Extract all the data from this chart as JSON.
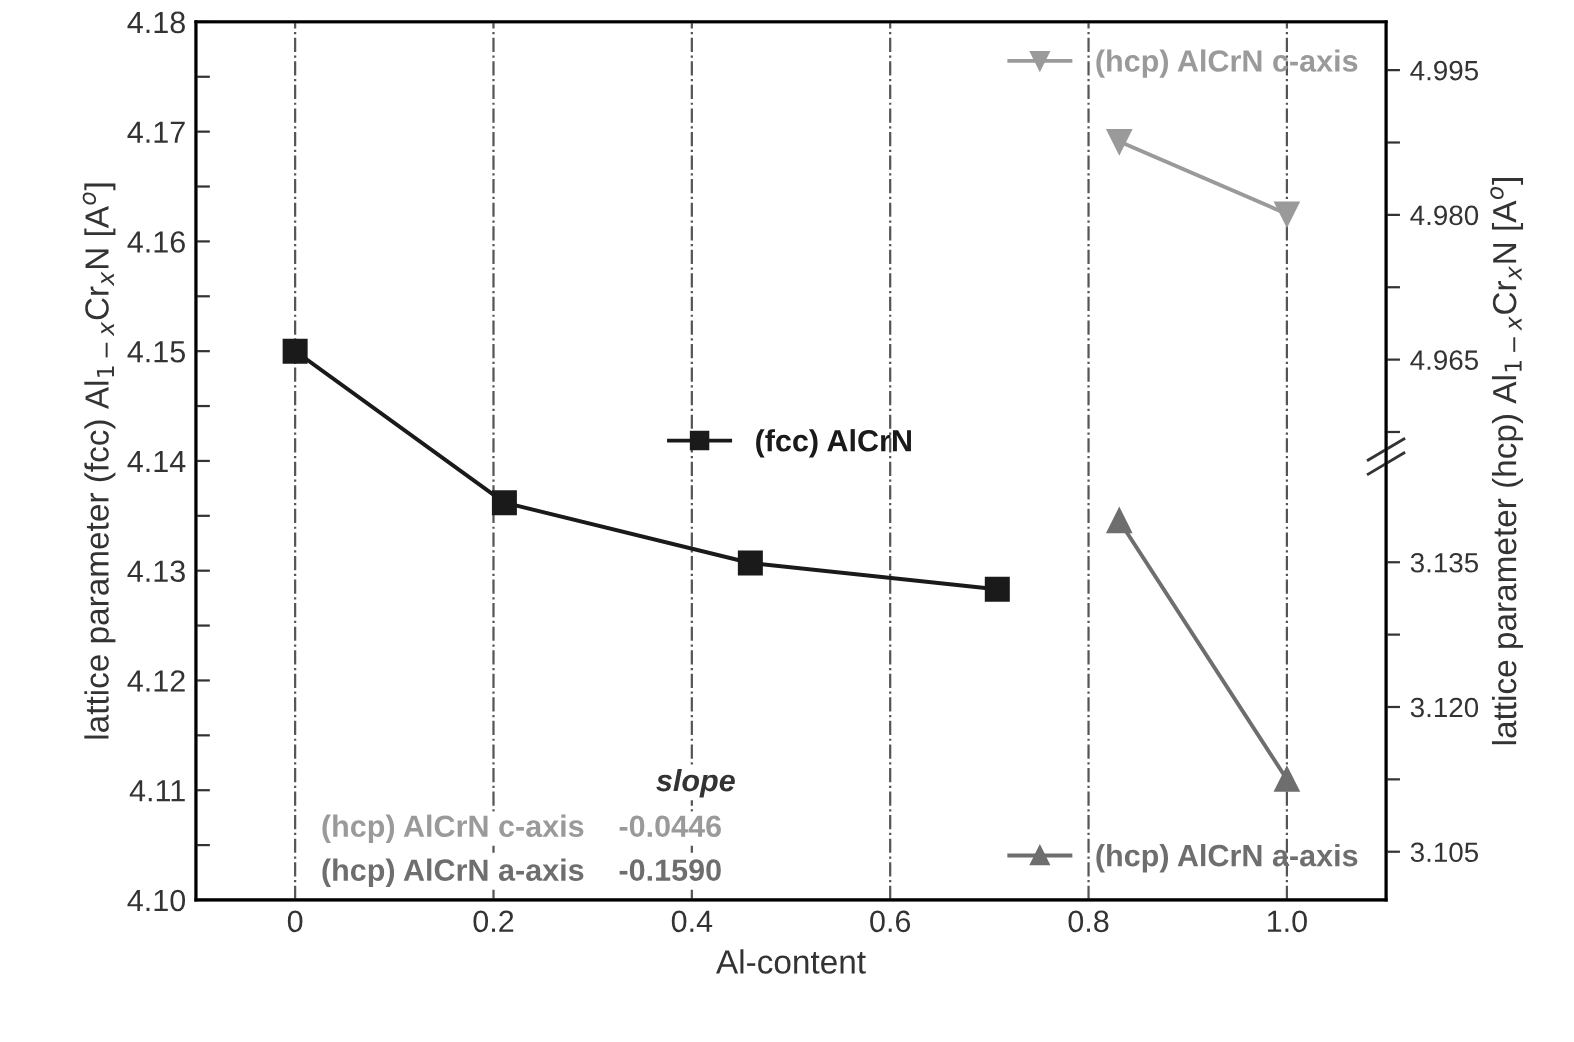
{
  "chart_data": {
    "type": "line",
    "xlabel": "Al-content",
    "ylabel": "lattice parameter (fcc) Al$_{1−x}$Cr$_{x}$N [A$^{o}$]",
    "y2label": "lattice parameter (hcp) Al$_{1−x}$Cr$_{x}$N [A$^{o}$]",
    "xlim": [
      -0.1,
      1.1
    ],
    "xticks": [
      0,
      0.2,
      0.4,
      0.6,
      0.8,
      {
        "value": 1.0,
        "label": "1.0"
      }
    ],
    "ylim": [
      4.1,
      4.18
    ],
    "yticks": [
      {
        "value": 4.1,
        "label": "4.10"
      },
      {
        "value": 4.105,
        "label": null
      },
      4.11,
      {
        "value": 4.115,
        "label": null
      },
      4.12,
      {
        "value": 4.125,
        "label": null
      },
      4.13,
      {
        "value": 4.135,
        "label": null
      },
      4.14,
      {
        "value": 4.145,
        "label": null
      },
      4.15,
      {
        "value": 4.155,
        "label": null
      },
      4.16,
      {
        "value": 4.165,
        "label": null
      },
      4.17,
      {
        "value": 4.175,
        "label": null
      },
      {
        "value": 4.18,
        "label": "4.18"
      }
    ],
    "y2lim": [
      4.909,
      5.0
    ],
    "y2ticks": [
      {
        "value": 4.9575,
        "label": null
      },
      4.965,
      {
        "value": 4.9725,
        "label": null
      },
      {
        "value": 4.98,
        "label": "4.980"
      },
      {
        "value": 4.9875,
        "label": null
      },
      4.995
    ],
    "y3lim": [
      3.1,
      3.191
    ],
    "y3ticks": [
      3.105,
      {
        "value": 3.1125,
        "label": null
      },
      {
        "value": 3.12,
        "label": "3.120"
      },
      {
        "value": 3.1275,
        "label": null
      },
      3.135
    ],
    "grid": "x",
    "legend": "right",
    "line_style": "solid",
    "series": [
      {
        "name": "(fcc) AlCrN",
        "color": "#1a1a1a",
        "marker": "square",
        "x": [
          0,
          0.211,
          0.459,
          0.708
        ],
        "values": [
          4.15,
          4.1362,
          4.1307,
          4.1283
        ]
      },
      {
        "name": "(hcp) AlCrN c-axis",
        "color": "#9a9a9a",
        "marker": "triangle_down",
        "axis": "y2",
        "x": [
          0.831,
          1.0
        ],
        "values": [
          4.9876,
          4.9801
        ]
      },
      {
        "name": "(hcp) AlCrN a-axis",
        "color": "#6e6e6e",
        "marker": "triangle",
        "axis": "y3",
        "x": [
          0.831,
          1.0
        ],
        "values": [
          3.1393,
          3.1125
        ]
      }
    ],
    "annotations": [
      "slope",
      "(hcp) AlCrN c-axis",
      "-0.0446",
      "(hcp) AlCrN a-axis",
      "-0.1590"
    ]
  }
}
